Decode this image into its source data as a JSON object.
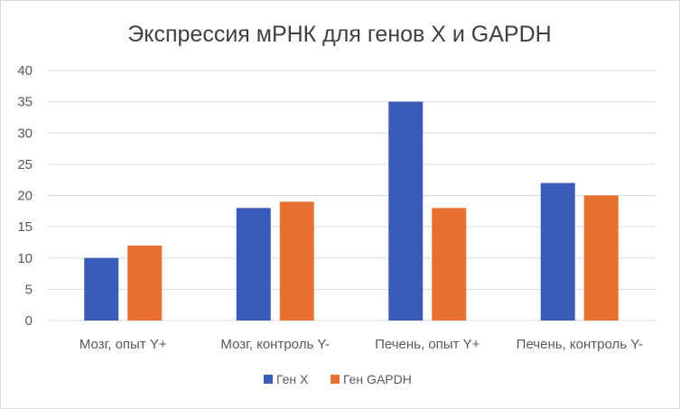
{
  "chart_data": {
    "type": "bar",
    "title": "Экспрессия мРНК для генов X и GAPDH",
    "categories": [
      "Мозг, опыт Y+",
      "Мозг, контроль Y-",
      "Печень, опыт Y+",
      "Печень, контроль Y-"
    ],
    "series": [
      {
        "name": "Ген X",
        "values": [
          10,
          18,
          35,
          22
        ],
        "color": "#3a5bb8"
      },
      {
        "name": "Ген GAPDH",
        "values": [
          12,
          19,
          18,
          20
        ],
        "color": "#e8712f"
      }
    ],
    "y_ticks": [
      "0",
      "5",
      "10",
      "15",
      "20",
      "25",
      "30",
      "35",
      "40"
    ],
    "ylim": [
      0,
      40
    ],
    "grid": true,
    "legend_position": "bottom"
  }
}
